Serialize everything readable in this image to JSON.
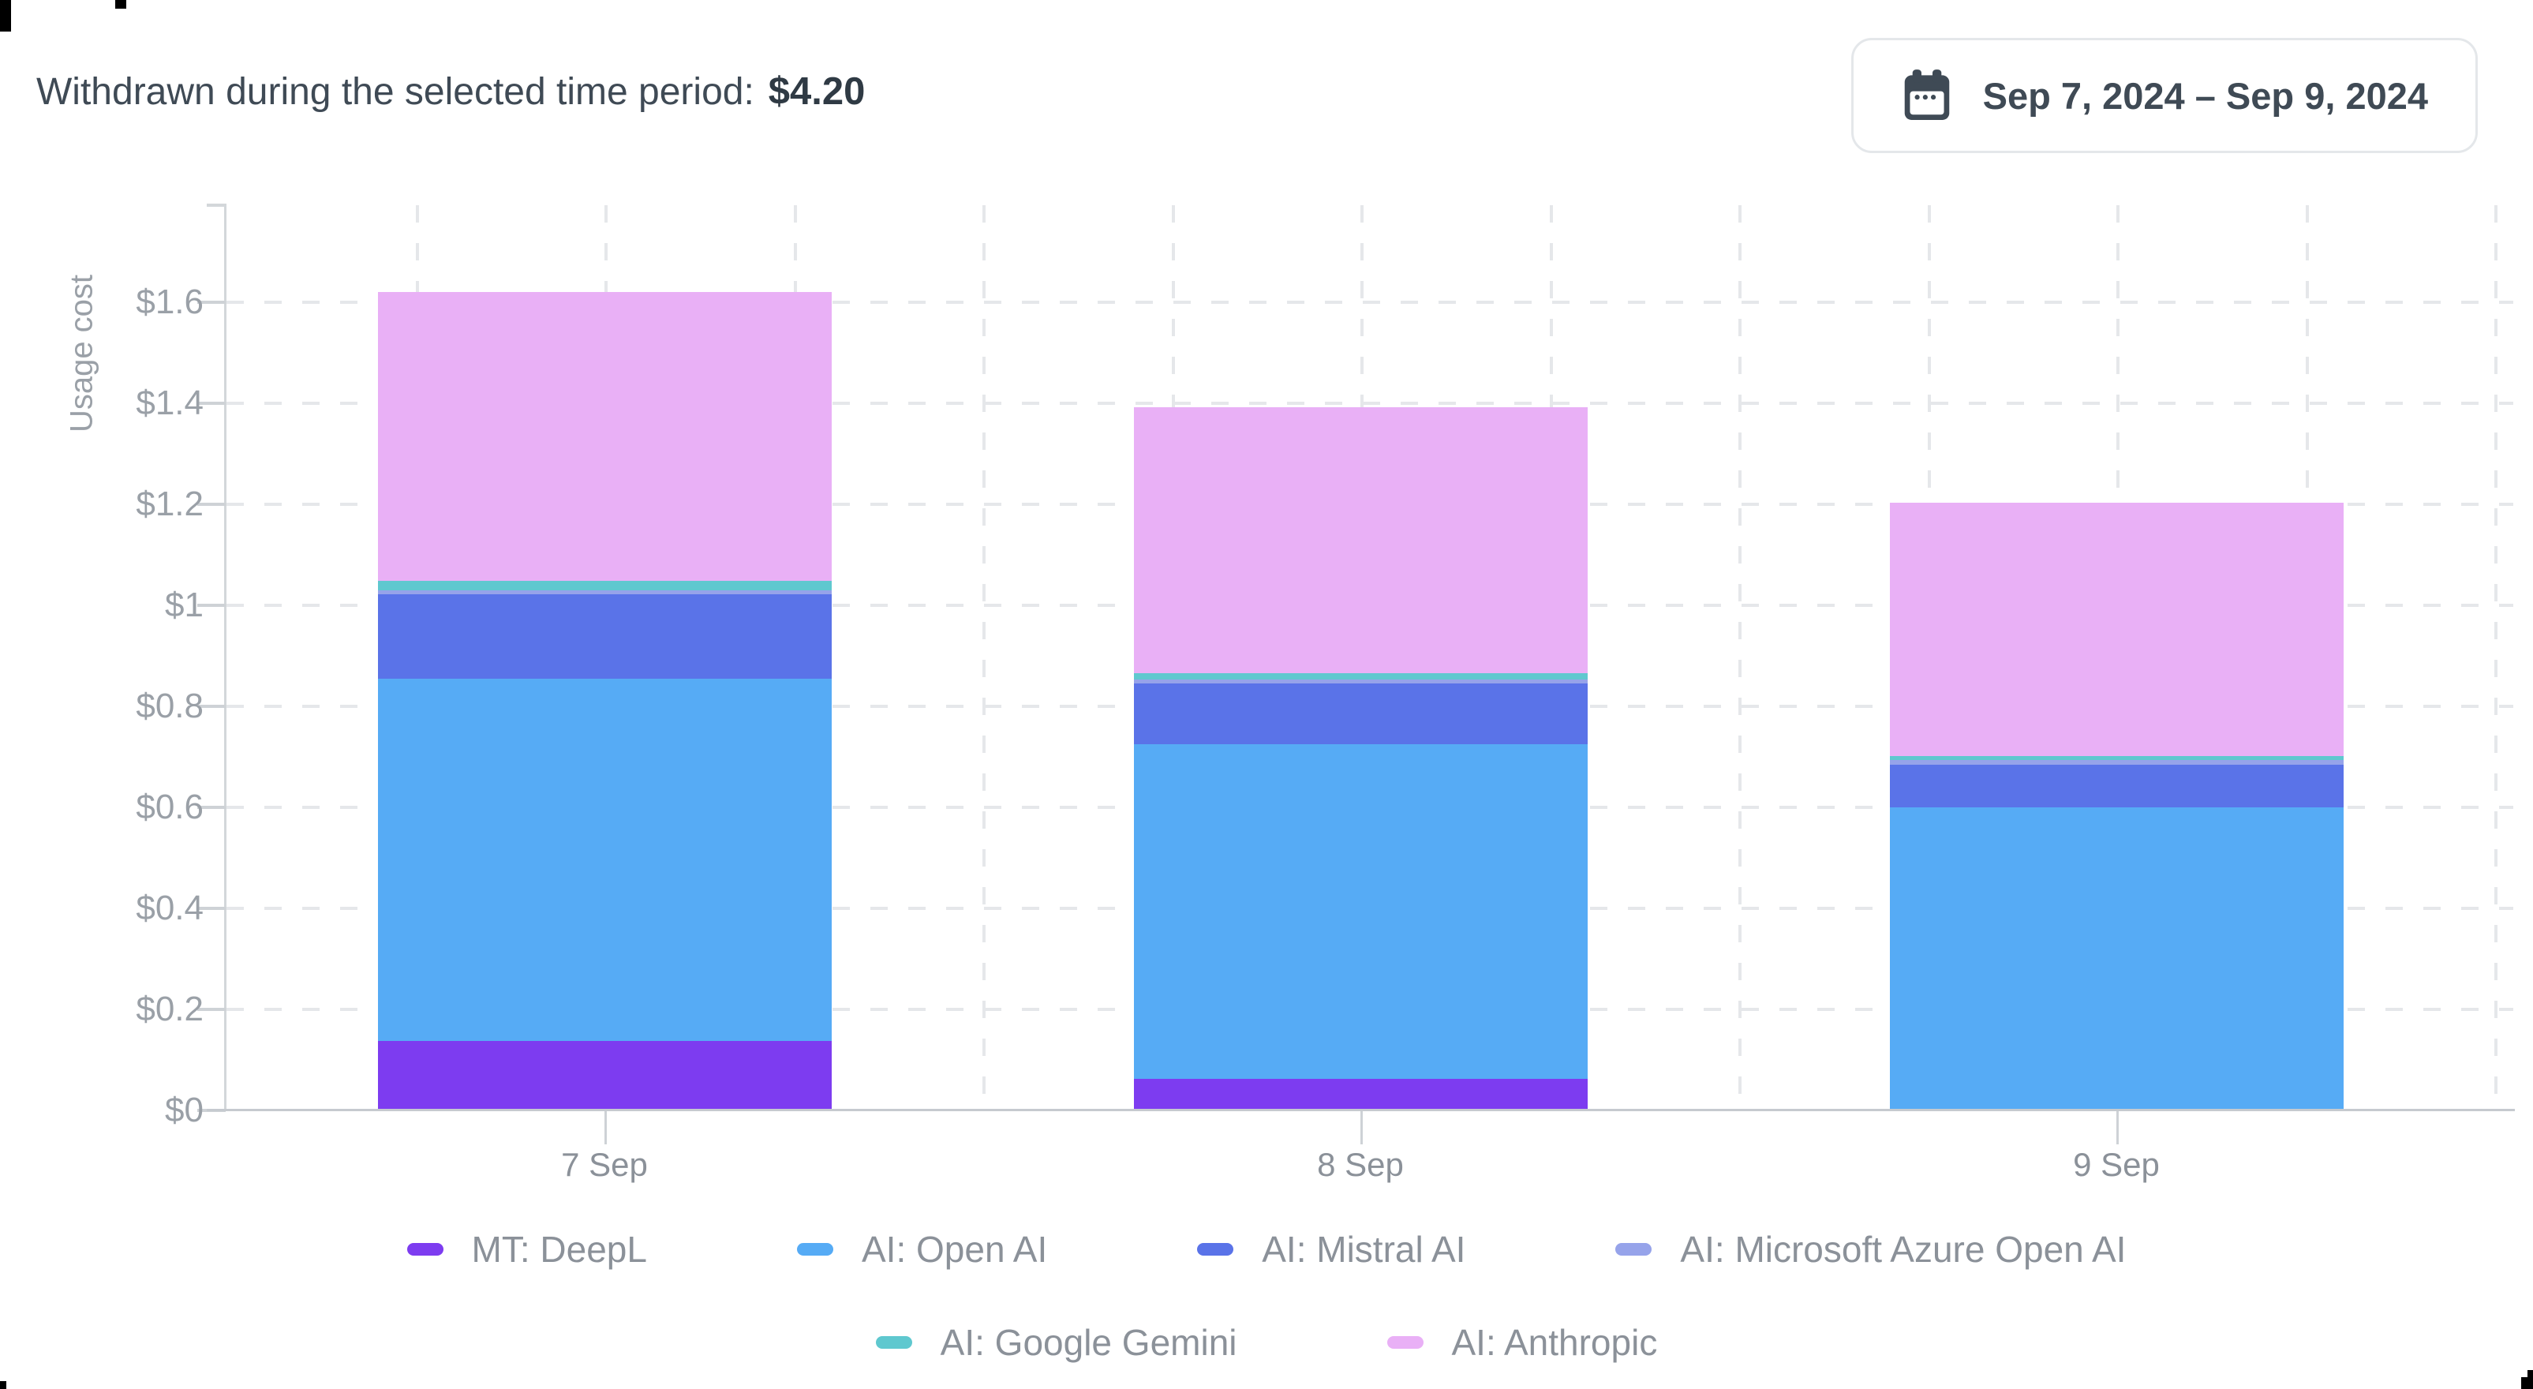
{
  "colors": {
    "text_dark": "#3f4a55",
    "text_muted": "#8b9199",
    "axis": "#c6cacf",
    "grid": "#e5e7ea"
  },
  "header": {
    "label": "Withdrawn during the selected time period:",
    "amount": "$4.20"
  },
  "date_picker": {
    "icon": "calendar-icon",
    "range_label": "Sep 7, 2024 – Sep 9, 2024"
  },
  "chart_data": {
    "type": "bar",
    "stacked": true,
    "ylabel": "Usage cost",
    "xlabel": "",
    "categories": [
      "7 Sep",
      "8 Sep",
      "9 Sep"
    ],
    "y_ticks": [
      "$0",
      "$0.2",
      "$0.4",
      "$0.6",
      "$0.8",
      "$1",
      "$1.2",
      "$1.4",
      "$1.6"
    ],
    "y_tick_step": 0.2,
    "ylim": [
      0,
      1.78
    ],
    "grid": true,
    "legend_position": "bottom",
    "series": [
      {
        "name": "MT: DeepL",
        "color": "#7d3cf0",
        "values": [
          0.134,
          0.059,
          0.0
        ]
      },
      {
        "name": "AI: Open AI",
        "color": "#56abf5",
        "values": [
          0.717,
          0.663,
          0.597
        ]
      },
      {
        "name": "AI: Mistral AI",
        "color": "#5a73e8",
        "values": [
          0.167,
          0.12,
          0.084
        ]
      },
      {
        "name": "AI: Microsoft Azure Open AI",
        "color": "#96a3ea",
        "values": [
          0.008,
          0.008,
          0.009
        ]
      },
      {
        "name": "AI: Google Gemini",
        "color": "#5fc8cf",
        "values": [
          0.019,
          0.013,
          0.008
        ]
      },
      {
        "name": "AI: Anthropic",
        "color": "#e9b0f6",
        "values": [
          0.572,
          0.527,
          0.501
        ]
      }
    ],
    "bar_totals": [
      1.62,
      1.39,
      1.2
    ],
    "legend_rows": [
      [
        0,
        1,
        2,
        3
      ],
      [
        4,
        5
      ]
    ]
  }
}
